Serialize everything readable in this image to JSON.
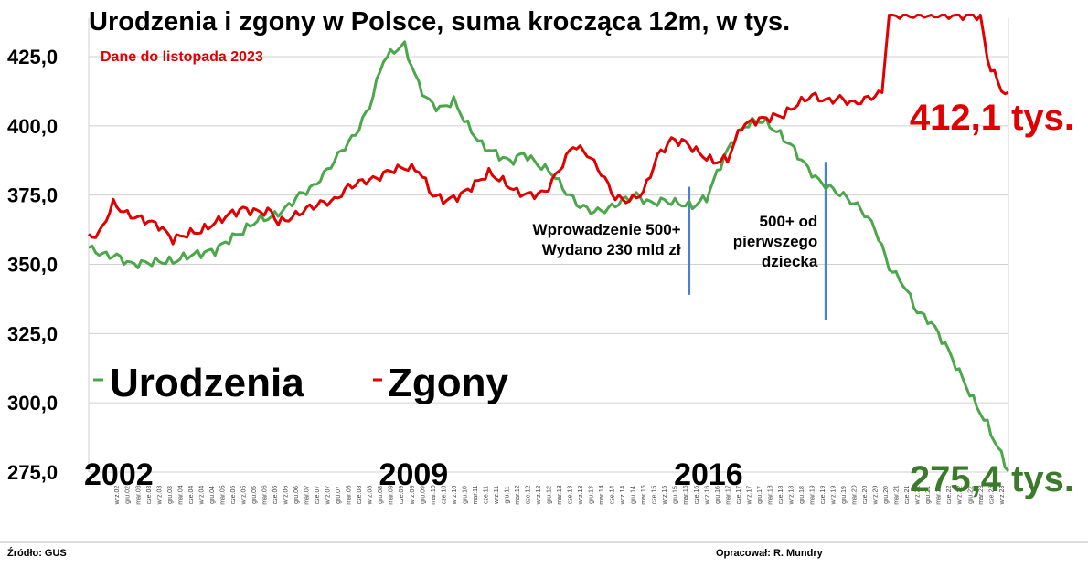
{
  "chart_data": {
    "type": "line",
    "title": "Urodzenia i zgony w Polsce, suma krocząca 12m, w tys.",
    "subtitle": "Dane do listopada 2023",
    "y_ticks": [
      "425,0",
      "400,0",
      "375,0",
      "350,0",
      "325,0",
      "300,0",
      "275,0"
    ],
    "y_tick_values": [
      425,
      400,
      375,
      350,
      325,
      300,
      275
    ],
    "ylim": [
      273,
      440
    ],
    "x_start": "2002-01",
    "x_end": "2023-11",
    "x_tick_labels": [
      "wrz.02",
      "gru.02",
      "mar.03",
      "cze.03",
      "wrz.03",
      "gru.03",
      "mar.04",
      "cze.04",
      "wrz.04",
      "gru.04",
      "mar.05",
      "cze.05",
      "wrz.05",
      "gru.05",
      "mar.06",
      "cze.06",
      "wrz.06",
      "gru.06",
      "mar.07",
      "cze.07",
      "wrz.07",
      "gru.07",
      "mar.08",
      "cze.08",
      "wrz.08",
      "gru.08",
      "mar.09",
      "cze.09",
      "wrz.09",
      "gru.09",
      "mar.10",
      "cze.10",
      "wrz.10",
      "gru.10",
      "mar.11",
      "cze.11",
      "wrz.11",
      "gru.11",
      "mar.12",
      "cze.12",
      "wrz.12",
      "gru.12",
      "mar.13",
      "cze.13",
      "wrz.13",
      "gru.13",
      "mar.14",
      "cze.14",
      "wrz.14",
      "gru.14",
      "mar.15",
      "cze.15",
      "wrz.15",
      "gru.15",
      "mar.16",
      "cze.16",
      "wrz.16",
      "gru.16",
      "mar.17",
      "cze.17",
      "wrz.17",
      "gru.17",
      "mar.18",
      "cze.18",
      "wrz.18",
      "gru.18",
      "mar.19",
      "cze.19",
      "wrz.19",
      "gru.19",
      "mar.20",
      "cze.20",
      "wrz.20",
      "gru.20",
      "mar.21",
      "cze.21",
      "wrz.21",
      "gru.21",
      "mar.22",
      "cze.22",
      "wrz.22",
      "gru.22",
      "mar.23",
      "cze.23",
      "wrz.23"
    ],
    "year_labels": [
      {
        "label": "2002",
        "date": "2002-01"
      },
      {
        "label": "2009",
        "date": "2009-01"
      },
      {
        "label": "2016",
        "date": "2016-01"
      }
    ],
    "series": [
      {
        "name": "Urodzenia",
        "color": "#4aa84a",
        "points": [
          [
            "2002-01",
            356
          ],
          [
            "2002-05",
            353.5
          ],
          [
            "2002-09",
            353
          ],
          [
            "2003-01",
            350
          ],
          [
            "2003-05",
            350.5
          ],
          [
            "2003-09",
            351
          ],
          [
            "2004-01",
            351
          ],
          [
            "2004-05",
            353
          ],
          [
            "2004-09",
            354
          ],
          [
            "2005-01",
            355
          ],
          [
            "2005-05",
            359
          ],
          [
            "2005-09",
            362
          ],
          [
            "2006-01",
            366
          ],
          [
            "2006-05",
            367
          ],
          [
            "2006-09",
            370
          ],
          [
            "2007-01",
            375
          ],
          [
            "2007-05",
            378
          ],
          [
            "2007-09",
            384
          ],
          [
            "2008-01",
            391
          ],
          [
            "2008-05",
            397
          ],
          [
            "2008-09",
            407
          ],
          [
            "2009-01",
            424
          ],
          [
            "2009-05",
            428
          ],
          [
            "2009-07",
            429
          ],
          [
            "2009-10",
            418
          ],
          [
            "2010-01",
            410
          ],
          [
            "2010-05",
            406
          ],
          [
            "2010-09",
            409
          ],
          [
            "2011-01",
            400
          ],
          [
            "2011-05",
            393
          ],
          [
            "2011-09",
            390
          ],
          [
            "2012-01",
            387
          ],
          [
            "2012-05",
            390
          ],
          [
            "2012-09",
            386
          ],
          [
            "2013-01",
            383
          ],
          [
            "2013-05",
            376
          ],
          [
            "2013-09",
            371
          ],
          [
            "2014-01",
            369
          ],
          [
            "2014-05",
            370
          ],
          [
            "2014-09",
            373
          ],
          [
            "2015-01",
            375
          ],
          [
            "2015-05",
            372
          ],
          [
            "2015-09",
            373
          ],
          [
            "2016-01",
            372
          ],
          [
            "2016-05",
            371
          ],
          [
            "2016-09",
            374
          ],
          [
            "2017-01",
            386
          ],
          [
            "2017-05",
            396
          ],
          [
            "2017-09",
            401
          ],
          [
            "2018-01",
            402
          ],
          [
            "2018-05",
            398
          ],
          [
            "2018-09",
            393
          ],
          [
            "2019-01",
            386
          ],
          [
            "2019-05",
            380
          ],
          [
            "2019-09",
            377
          ],
          [
            "2020-01",
            374
          ],
          [
            "2020-05",
            370
          ],
          [
            "2020-09",
            363
          ],
          [
            "2021-01",
            349
          ],
          [
            "2021-05",
            343
          ],
          [
            "2021-09",
            333
          ],
          [
            "2022-01",
            329
          ],
          [
            "2022-05",
            321
          ],
          [
            "2022-09",
            311
          ],
          [
            "2023-01",
            301
          ],
          [
            "2023-05",
            292
          ],
          [
            "2023-09",
            281
          ],
          [
            "2023-11",
            275.4
          ]
        ]
      },
      {
        "name": "Zgony",
        "color": "#e00000",
        "points": [
          [
            "2002-01",
            360
          ],
          [
            "2002-04",
            361
          ],
          [
            "2002-08",
            372
          ],
          [
            "2002-12",
            368
          ],
          [
            "2003-05",
            366
          ],
          [
            "2003-09",
            364
          ],
          [
            "2004-01",
            359
          ],
          [
            "2004-05",
            361
          ],
          [
            "2004-09",
            362
          ],
          [
            "2005-01",
            365
          ],
          [
            "2005-05",
            368
          ],
          [
            "2005-09",
            370
          ],
          [
            "2006-01",
            369
          ],
          [
            "2006-05",
            369
          ],
          [
            "2006-07",
            365
          ],
          [
            "2006-11",
            367
          ],
          [
            "2007-03",
            370
          ],
          [
            "2007-07",
            372
          ],
          [
            "2007-11",
            373
          ],
          [
            "2008-03",
            378
          ],
          [
            "2008-07",
            380
          ],
          [
            "2008-11",
            381
          ],
          [
            "2009-03",
            384
          ],
          [
            "2009-07",
            385
          ],
          [
            "2009-11",
            384
          ],
          [
            "2010-03",
            375
          ],
          [
            "2010-07",
            373
          ],
          [
            "2010-11",
            375
          ],
          [
            "2011-03",
            379
          ],
          [
            "2011-07",
            383
          ],
          [
            "2011-11",
            380
          ],
          [
            "2012-03",
            376
          ],
          [
            "2012-07",
            375
          ],
          [
            "2012-11",
            376
          ],
          [
            "2013-03",
            384
          ],
          [
            "2013-07",
            393
          ],
          [
            "2013-11",
            390
          ],
          [
            "2014-03",
            383
          ],
          [
            "2014-07",
            374
          ],
          [
            "2014-11",
            373
          ],
          [
            "2015-03",
            376
          ],
          [
            "2015-07",
            389
          ],
          [
            "2015-11",
            395
          ],
          [
            "2016-03",
            394
          ],
          [
            "2016-07",
            390
          ],
          [
            "2016-11",
            387
          ],
          [
            "2017-03",
            388
          ],
          [
            "2017-07",
            400
          ],
          [
            "2017-11",
            402
          ],
          [
            "2018-03",
            403
          ],
          [
            "2018-07",
            404
          ],
          [
            "2018-11",
            408
          ],
          [
            "2019-03",
            411
          ],
          [
            "2019-07",
            409
          ],
          [
            "2019-11",
            410
          ],
          [
            "2020-03",
            408
          ],
          [
            "2020-07",
            410
          ],
          [
            "2020-11",
            412
          ],
          [
            "2021-01",
            440
          ],
          [
            "2023-03",
            440
          ],
          [
            "2023-05",
            424
          ],
          [
            "2023-09",
            413
          ],
          [
            "2023-11",
            412.1
          ]
        ]
      }
    ],
    "end_labels": [
      {
        "series": "Zgony",
        "text": "412,1 tys.",
        "color": "#e00000"
      },
      {
        "series": "Urodzenia",
        "text": "275,4 tys.",
        "color": "#3a7a2a"
      }
    ],
    "annotations": [
      {
        "date": "2016-04",
        "y_top": 378,
        "y_bottom": 339,
        "color": "#4a7fd4",
        "lines": [
          "Wprowadzenie 500+",
          "Wydano 230 mld zł"
        ]
      },
      {
        "date": "2019-07",
        "y_top": 387,
        "y_bottom": 330,
        "color": "#4a7fd4",
        "lines": [
          "500+ od",
          "pierwszego",
          "dziecka"
        ]
      }
    ],
    "legend": {
      "placement": "bottom-left",
      "items": [
        {
          "name": "Urodzenia",
          "color": "#4aa84a"
        },
        {
          "name": "Zgony",
          "color": "#e00000"
        }
      ]
    },
    "grid": "horizontal"
  },
  "footer": {
    "source": "Źródło: GUS",
    "author": "Opracował: R. Mundry"
  }
}
